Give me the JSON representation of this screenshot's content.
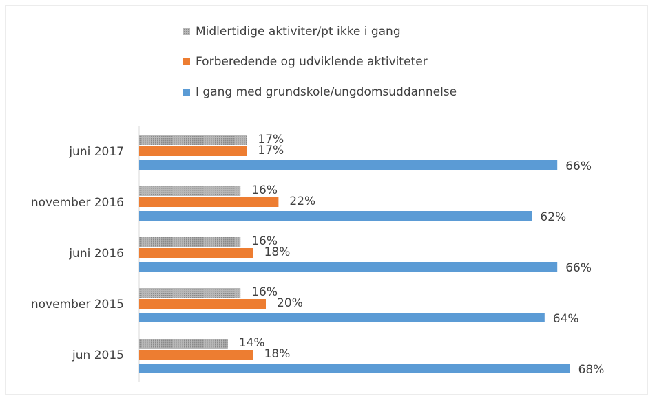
{
  "chart_data": {
    "type": "bar",
    "orientation": "horizontal",
    "categories": [
      "juni 2017",
      "november 2016",
      "juni 2016",
      "november 2015",
      "jun 2015"
    ],
    "series": [
      {
        "name": "Midlertidige aktiviter/pt ikke i gang",
        "color": "#a5a5a5",
        "values": [
          17,
          16,
          16,
          16,
          14
        ],
        "value_labels": [
          "17%",
          "16%",
          "16%",
          "16%",
          "14%"
        ]
      },
      {
        "name": "Forberedende og udviklende aktiviteter",
        "color": "#ed7d31",
        "values": [
          17,
          22,
          18,
          20,
          18
        ],
        "value_labels": [
          "17%",
          "22%",
          "18%",
          "20%",
          "18%"
        ]
      },
      {
        "name": "I gang med grundskole/ungdomsuddannelse",
        "color": "#5b9bd5",
        "values": [
          66,
          62,
          66,
          64,
          68
        ],
        "value_labels": [
          "66%",
          "62%",
          "66%",
          "64%",
          "68%"
        ]
      }
    ],
    "legend": "top"
  }
}
